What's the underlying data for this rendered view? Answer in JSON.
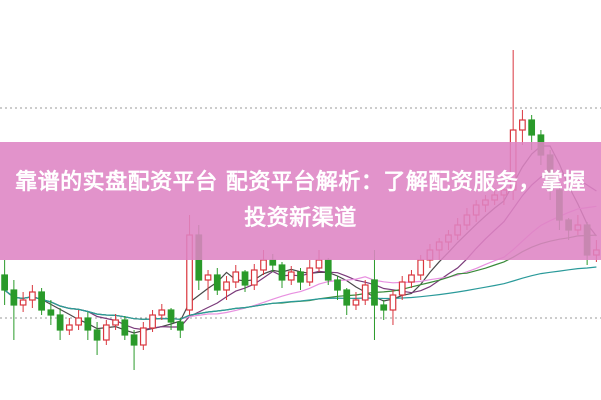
{
  "banner": {
    "title": "靠谱的实盘配资平台 配资平台解析：了解配资服务，掌握投资新渠道",
    "color": "#de84c4"
  },
  "chart_data": {
    "type": "candlestick",
    "title": "",
    "xlabel": "",
    "ylabel": "",
    "ylim": [
      0,
      400
    ],
    "grid": false,
    "reference_lines": [
      292,
      82
    ],
    "up_color": "#d9363e",
    "down_color": "#2a9a2a",
    "moving_averages": [
      {
        "period": 5,
        "color": "#4a4a4a"
      },
      {
        "period": 10,
        "color": "#7a3a7a"
      },
      {
        "period": 20,
        "color": "#e890e0"
      },
      {
        "period": 30,
        "color": "#3a8a3a"
      },
      {
        "period": 60,
        "color": "#2a9a9a"
      }
    ],
    "candles": [
      [
        125,
        140,
        95,
        110
      ],
      [
        110,
        120,
        60,
        95
      ],
      [
        95,
        108,
        88,
        100
      ],
      [
        100,
        115,
        92,
        108
      ],
      [
        108,
        112,
        85,
        90
      ],
      [
        90,
        100,
        75,
        85
      ],
      [
        85,
        92,
        60,
        70
      ],
      [
        70,
        82,
        65,
        75
      ],
      [
        75,
        90,
        70,
        82
      ],
      [
        82,
        88,
        60,
        70
      ],
      [
        70,
        78,
        45,
        60
      ],
      [
        60,
        80,
        55,
        75
      ],
      [
        75,
        86,
        70,
        80
      ],
      [
        80,
        84,
        60,
        65
      ],
      [
        65,
        70,
        30,
        55
      ],
      [
        55,
        78,
        50,
        72
      ],
      [
        72,
        90,
        68,
        85
      ],
      [
        85,
        96,
        80,
        90
      ],
      [
        90,
        92,
        70,
        78
      ],
      [
        78,
        82,
        62,
        70
      ],
      [
        90,
        185,
        85,
        165
      ],
      [
        165,
        175,
        110,
        120
      ],
      [
        120,
        130,
        100,
        125
      ],
      [
        125,
        132,
        105,
        110
      ],
      [
        110,
        124,
        100,
        118
      ],
      [
        118,
        135,
        112,
        128
      ],
      [
        128,
        130,
        108,
        115
      ],
      [
        115,
        136,
        110,
        130
      ],
      [
        130,
        150,
        125,
        140
      ],
      [
        140,
        146,
        128,
        135
      ],
      [
        135,
        138,
        112,
        120
      ],
      [
        120,
        134,
        115,
        128
      ],
      [
        128,
        132,
        110,
        118
      ],
      [
        118,
        140,
        114,
        132
      ],
      [
        132,
        150,
        128,
        140
      ],
      [
        140,
        142,
        115,
        120
      ],
      [
        120,
        124,
        100,
        110
      ],
      [
        110,
        112,
        85,
        95
      ],
      [
        95,
        108,
        90,
        100
      ],
      [
        100,
        120,
        95,
        115
      ],
      [
        120,
        150,
        60,
        95
      ],
      [
        95,
        100,
        80,
        90
      ],
      [
        90,
        110,
        75,
        105
      ],
      [
        105,
        124,
        100,
        118
      ],
      [
        118,
        130,
        112,
        125
      ],
      [
        125,
        145,
        120,
        140
      ],
      [
        140,
        156,
        132,
        150
      ],
      [
        150,
        162,
        140,
        158
      ],
      [
        158,
        170,
        150,
        165
      ],
      [
        165,
        182,
        160,
        175
      ],
      [
        175,
        192,
        170,
        185
      ],
      [
        185,
        200,
        178,
        195
      ],
      [
        195,
        205,
        188,
        200
      ],
      [
        200,
        212,
        195,
        205
      ],
      [
        205,
        215,
        195,
        210
      ],
      [
        210,
        350,
        200,
        270
      ],
      [
        270,
        290,
        255,
        280
      ],
      [
        280,
        285,
        250,
        265
      ],
      [
        265,
        270,
        235,
        245
      ],
      [
        245,
        250,
        200,
        210
      ],
      [
        210,
        215,
        170,
        180
      ],
      [
        180,
        182,
        160,
        170
      ],
      [
        170,
        185,
        165,
        175
      ],
      [
        175,
        178,
        135,
        145
      ],
      [
        145,
        160,
        138,
        150
      ]
    ]
  }
}
